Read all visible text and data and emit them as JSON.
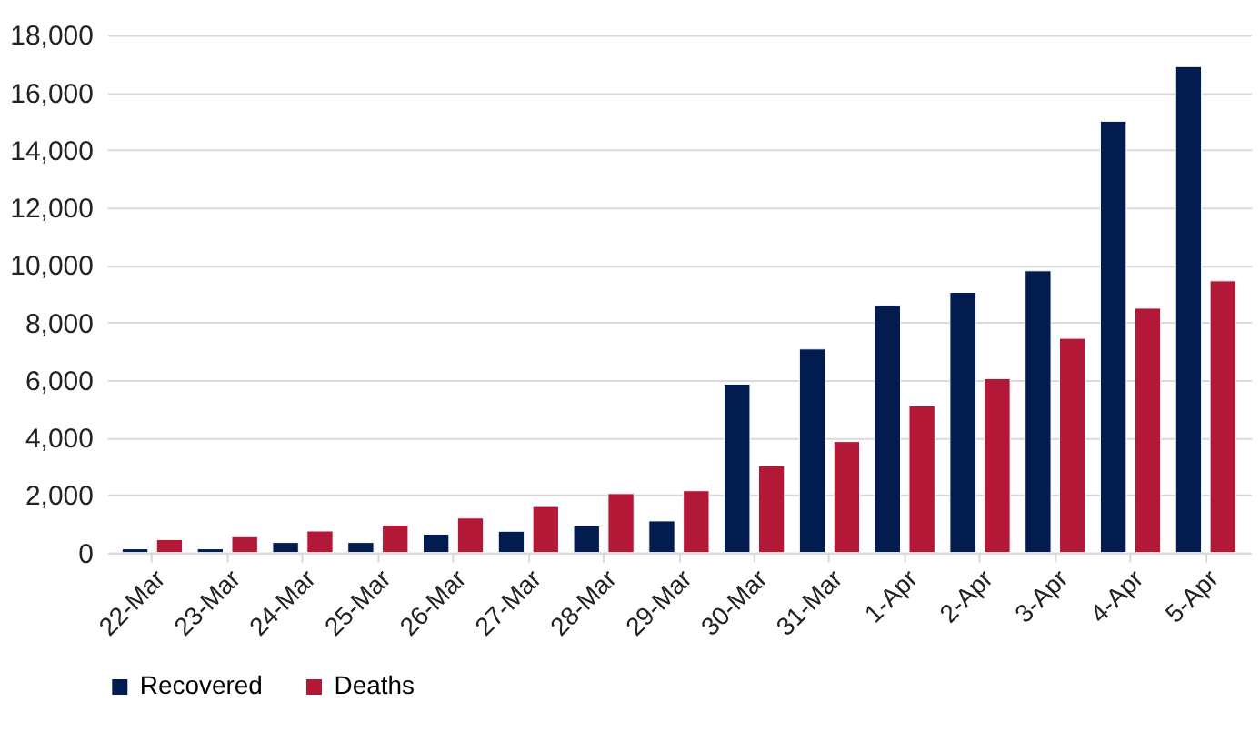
{
  "chart_data": {
    "type": "bar",
    "categories": [
      "22-Mar",
      "23-Mar",
      "24-Mar",
      "25-Mar",
      "26-Mar",
      "27-Mar",
      "28-Mar",
      "29-Mar",
      "30-Mar",
      "31-Mar",
      "1-Apr",
      "2-Apr",
      "3-Apr",
      "4-Apr",
      "5-Apr"
    ],
    "series": [
      {
        "name": "Recovered",
        "color": "#021c4f",
        "values": [
          130,
          130,
          350,
          350,
          640,
          740,
          930,
          1100,
          5860,
          7080,
          8600,
          9050,
          9800,
          15000,
          16900
        ]
      },
      {
        "name": "Deaths",
        "color": "#b31937",
        "values": [
          450,
          550,
          750,
          950,
          1200,
          1600,
          2050,
          2150,
          3020,
          3860,
          5100,
          6050,
          7450,
          8500,
          9450
        ]
      }
    ],
    "ylim": [
      0,
      18000
    ],
    "yticks": [
      0,
      {
        "value": 2000,
        "label": "2,000"
      },
      {
        "value": 4000,
        "label": "4,000"
      },
      {
        "value": 6000,
        "label": "6,000"
      },
      {
        "value": 8000,
        "label": "8,000"
      },
      {
        "value": 10000,
        "label": "10,000"
      },
      {
        "value": 12000,
        "label": "12,000"
      },
      {
        "value": 14000,
        "label": "14,000"
      },
      {
        "value": 16000,
        "label": "16,000"
      },
      {
        "value": 18000,
        "label": "18,000"
      }
    ],
    "grid": "y",
    "legend": "bottom"
  }
}
